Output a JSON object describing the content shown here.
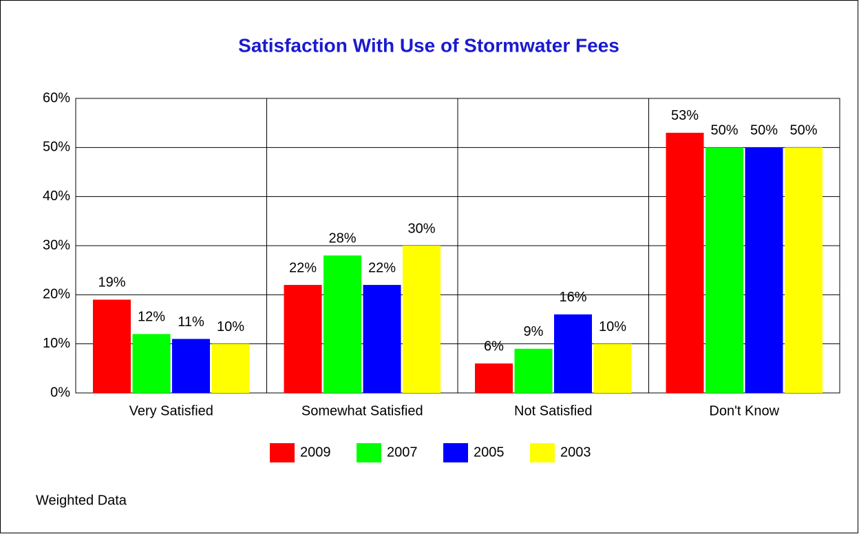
{
  "chart_data": {
    "type": "bar",
    "title": "Satisfaction With Use of Stormwater Fees",
    "categories": [
      "Very Satisfied",
      "Somewhat Satisfied",
      "Not Satisfied",
      "Don't Know"
    ],
    "series": [
      {
        "name": "2009",
        "color": "#ff0000",
        "values": [
          19,
          22,
          6,
          53
        ],
        "value_labels": [
          "19%",
          "22%",
          "6%",
          "53%"
        ]
      },
      {
        "name": "2007",
        "color": "#00ff00",
        "values": [
          12,
          28,
          9,
          50
        ],
        "value_labels": [
          "12%",
          "28%",
          "9%",
          "50%"
        ]
      },
      {
        "name": "2005",
        "color": "#0000ff",
        "values": [
          11,
          22,
          16,
          50
        ],
        "value_labels": [
          "11%",
          "22%",
          "16%",
          "50%"
        ]
      },
      {
        "name": "2003",
        "color": "#ffff00",
        "values": [
          10,
          30,
          10,
          50
        ],
        "value_labels": [
          "10%",
          "30%",
          "10%",
          "50%"
        ]
      }
    ],
    "ylim": [
      0,
      60
    ],
    "yticks": [
      {
        "value": 0,
        "label": "0%"
      },
      {
        "value": 10,
        "label": "10%"
      },
      {
        "value": 20,
        "label": "20%"
      },
      {
        "value": 30,
        "label": "30%"
      },
      {
        "value": 40,
        "label": "40%"
      },
      {
        "value": 50,
        "label": "50%"
      },
      {
        "value": 60,
        "label": "60%"
      }
    ],
    "grid": true,
    "legend": "bottom",
    "note": "Weighted Data"
  }
}
